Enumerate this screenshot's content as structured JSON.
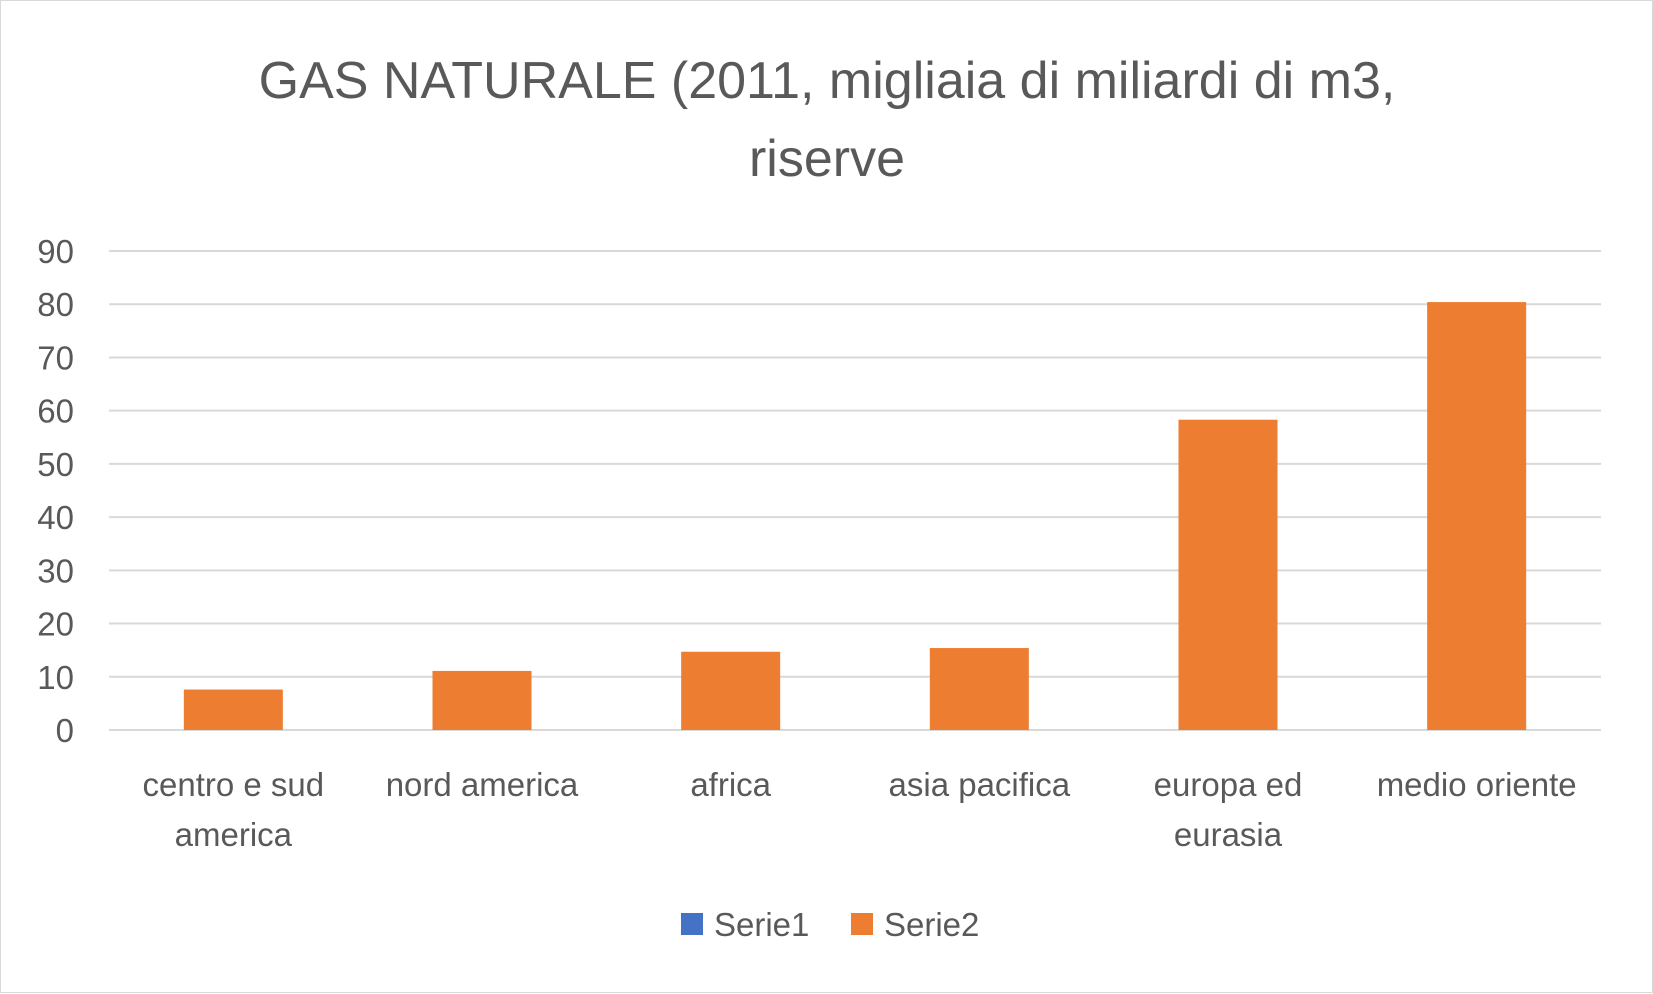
{
  "chart_data": {
    "type": "bar",
    "title_lines": [
      "GAS NATURALE (2011, migliaia di miliardi di m3,",
      "riserve"
    ],
    "categories": [
      [
        "centro e sud",
        "america"
      ],
      [
        "nord america"
      ],
      [
        "africa"
      ],
      [
        "asia pacifica"
      ],
      [
        "europa ed",
        "eurasia"
      ],
      [
        "medio oriente"
      ]
    ],
    "series": [
      {
        "name": "Serie1",
        "color": "#4472c4",
        "values": [
          0,
          0,
          0,
          0,
          0,
          0
        ]
      },
      {
        "name": "Serie2",
        "color": "#ed7d31",
        "values": [
          7.6,
          11.1,
          14.7,
          15.4,
          58.3,
          80.4
        ]
      }
    ],
    "ylim": [
      0,
      90
    ],
    "yticks": [
      0,
      10,
      20,
      30,
      40,
      50,
      60,
      70,
      80,
      90
    ],
    "grid": true,
    "legend_position": "bottom",
    "colors": {
      "grid": "#d9d9d9",
      "text": "#595959"
    }
  }
}
